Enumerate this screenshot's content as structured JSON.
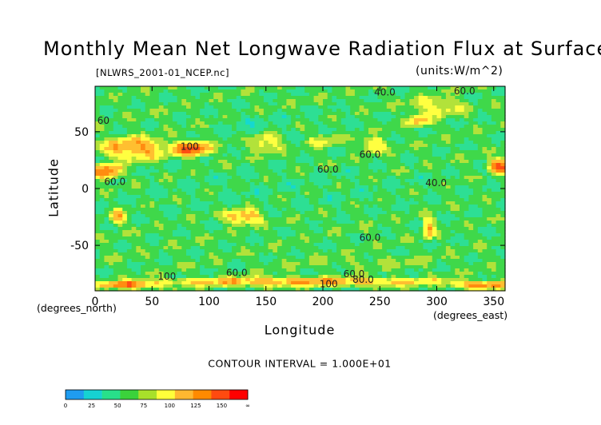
{
  "chart_data": {
    "type": "heatmap",
    "title": "Monthly Mean Net Longwave Radiation Flux at Surface",
    "subtitle": "[NLWRS_2001-01_NCEP.nc]",
    "units": "(units:W/m^2)",
    "xlabel": "Longitude",
    "ylabel": "Latitude",
    "x_axis_note": "(degrees_east)",
    "y_axis_note": "(degrees_north)",
    "xlim": [
      0,
      360
    ],
    "ylim": [
      -90,
      90
    ],
    "x_ticks": [
      "0",
      "50",
      "100",
      "150",
      "200",
      "250",
      "300",
      "350"
    ],
    "y_ticks": [
      "50",
      "0",
      "-50"
    ],
    "contour_interval_text": "CONTOUR INTERVAL = 1.000E+01",
    "contour_labels": [
      {
        "text": "40.0",
        "lon": 245,
        "lat": 82
      },
      {
        "text": "60.0",
        "lon": 315,
        "lat": 83
      },
      {
        "text": "60",
        "lon": 2,
        "lat": 57
      },
      {
        "text": "100",
        "lon": 75,
        "lat": 34
      },
      {
        "text": "60.0",
        "lon": 195,
        "lat": 14
      },
      {
        "text": "60.0",
        "lon": 232,
        "lat": 27
      },
      {
        "text": "60.0",
        "lon": 8,
        "lat": 3
      },
      {
        "text": "40.0",
        "lon": 290,
        "lat": 2
      },
      {
        "text": "60.0",
        "lon": 232,
        "lat": -46
      },
      {
        "text": "100",
        "lon": 55,
        "lat": -80
      },
      {
        "text": "60.0",
        "lon": 115,
        "lat": -77
      },
      {
        "text": "60.0",
        "lon": 218,
        "lat": -78
      },
      {
        "text": "80.0",
        "lon": 226,
        "lat": -83
      },
      {
        "text": "100",
        "lon": 197,
        "lat": -87
      }
    ],
    "colorbar": {
      "levels": [
        "0",
        "25",
        "50",
        "75",
        "100",
        "125",
        "150",
        "∞"
      ],
      "colors": [
        "#1f9cf0",
        "#16d2d2",
        "#28e08a",
        "#3bd23b",
        "#a8e02a",
        "#ffff3a",
        "#ffb830",
        "#ff8a00",
        "#ff4a10",
        "#ff0000"
      ]
    },
    "field_colors": [
      "#1aa4f0",
      "#15d8d0",
      "#2ddf94",
      "#3fd84a",
      "#b2e23a",
      "#ffff40",
      "#ffbf30",
      "#ff8c10",
      "#ff4d12",
      "#ff1010"
    ],
    "regions": [
      {
        "lon": 180,
        "lat": 0,
        "rlon": 200,
        "rlat": 30,
        "v": 45
      },
      {
        "lon": 65,
        "lat": -5,
        "rlon": 40,
        "rlat": 20,
        "v": 47
      },
      {
        "lon": 140,
        "lat": 55,
        "rlon": 50,
        "rlat": 18,
        "v": 40
      },
      {
        "lon": 200,
        "lat": 62,
        "rlon": 60,
        "rlat": 12,
        "v": 45
      },
      {
        "lon": 240,
        "lat": -65,
        "rlon": 120,
        "rlat": 9,
        "v": 60
      },
      {
        "lon": 300,
        "lat": 72,
        "rlon": 35,
        "rlat": 12,
        "v": 85
      },
      {
        "lon": 35,
        "lat": 35,
        "rlon": 45,
        "rlat": 15,
        "v": 105
      },
      {
        "lon": 85,
        "lat": 35,
        "rlon": 25,
        "rlat": 10,
        "v": 125
      },
      {
        "lon": 10,
        "lat": 15,
        "rlon": 20,
        "rlat": 10,
        "v": 120
      },
      {
        "lon": 355,
        "lat": 20,
        "rlon": 15,
        "rlat": 10,
        "v": 120
      },
      {
        "lon": 150,
        "lat": 40,
        "rlon": 20,
        "rlat": 12,
        "v": 90
      },
      {
        "lon": 200,
        "lat": 42,
        "rlon": 20,
        "rlat": 8,
        "v": 75
      },
      {
        "lon": 245,
        "lat": 38,
        "rlon": 15,
        "rlat": 10,
        "v": 95
      },
      {
        "lon": 285,
        "lat": 60,
        "rlon": 15,
        "rlat": 8,
        "v": 95
      },
      {
        "lon": 130,
        "lat": -25,
        "rlon": 25,
        "rlat": 10,
        "v": 105
      },
      {
        "lon": 20,
        "lat": -25,
        "rlon": 10,
        "rlat": 10,
        "v": 100
      },
      {
        "lon": 293,
        "lat": -35,
        "rlon": 8,
        "rlat": 15,
        "v": 100
      },
      {
        "lon": 180,
        "lat": -82,
        "rlon": 200,
        "rlat": 6,
        "v": 105
      },
      {
        "lon": 30,
        "lat": -85,
        "rlon": 40,
        "rlat": 5,
        "v": 120
      },
      {
        "lon": 340,
        "lat": -85,
        "rlon": 40,
        "rlat": 5,
        "v": 115
      }
    ]
  }
}
